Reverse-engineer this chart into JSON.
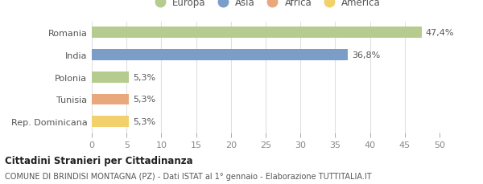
{
  "categories": [
    "Romania",
    "India",
    "Polonia",
    "Tunisia",
    "Rep. Dominicana"
  ],
  "values": [
    47.4,
    36.8,
    5.3,
    5.3,
    5.3
  ],
  "labels": [
    "47,4%",
    "36,8%",
    "5,3%",
    "5,3%",
    "5,3%"
  ],
  "colors": [
    "#b5cc8e",
    "#7b9dc7",
    "#b5cc8e",
    "#e8a87c",
    "#f2d06b"
  ],
  "legend_entries": [
    {
      "label": "Europa",
      "color": "#b5cc8e"
    },
    {
      "label": "Asia",
      "color": "#7b9dc7"
    },
    {
      "label": "Africa",
      "color": "#e8a87c"
    },
    {
      "label": "America",
      "color": "#f2d06b"
    }
  ],
  "xlim": [
    0,
    50
  ],
  "xticks": [
    0,
    5,
    10,
    15,
    20,
    25,
    30,
    35,
    40,
    45,
    50
  ],
  "title_bold": "Cittadini Stranieri per Cittadinanza",
  "subtitle": "COMUNE DI BRINDISI MONTAGNA (PZ) - Dati ISTAT al 1° gennaio - Elaborazione TUTTITALIA.IT",
  "background_color": "#ffffff",
  "grid_color": "#e0e0e0",
  "bar_height": 0.5,
  "label_fontsize": 8,
  "ytick_fontsize": 8,
  "xtick_fontsize": 8
}
